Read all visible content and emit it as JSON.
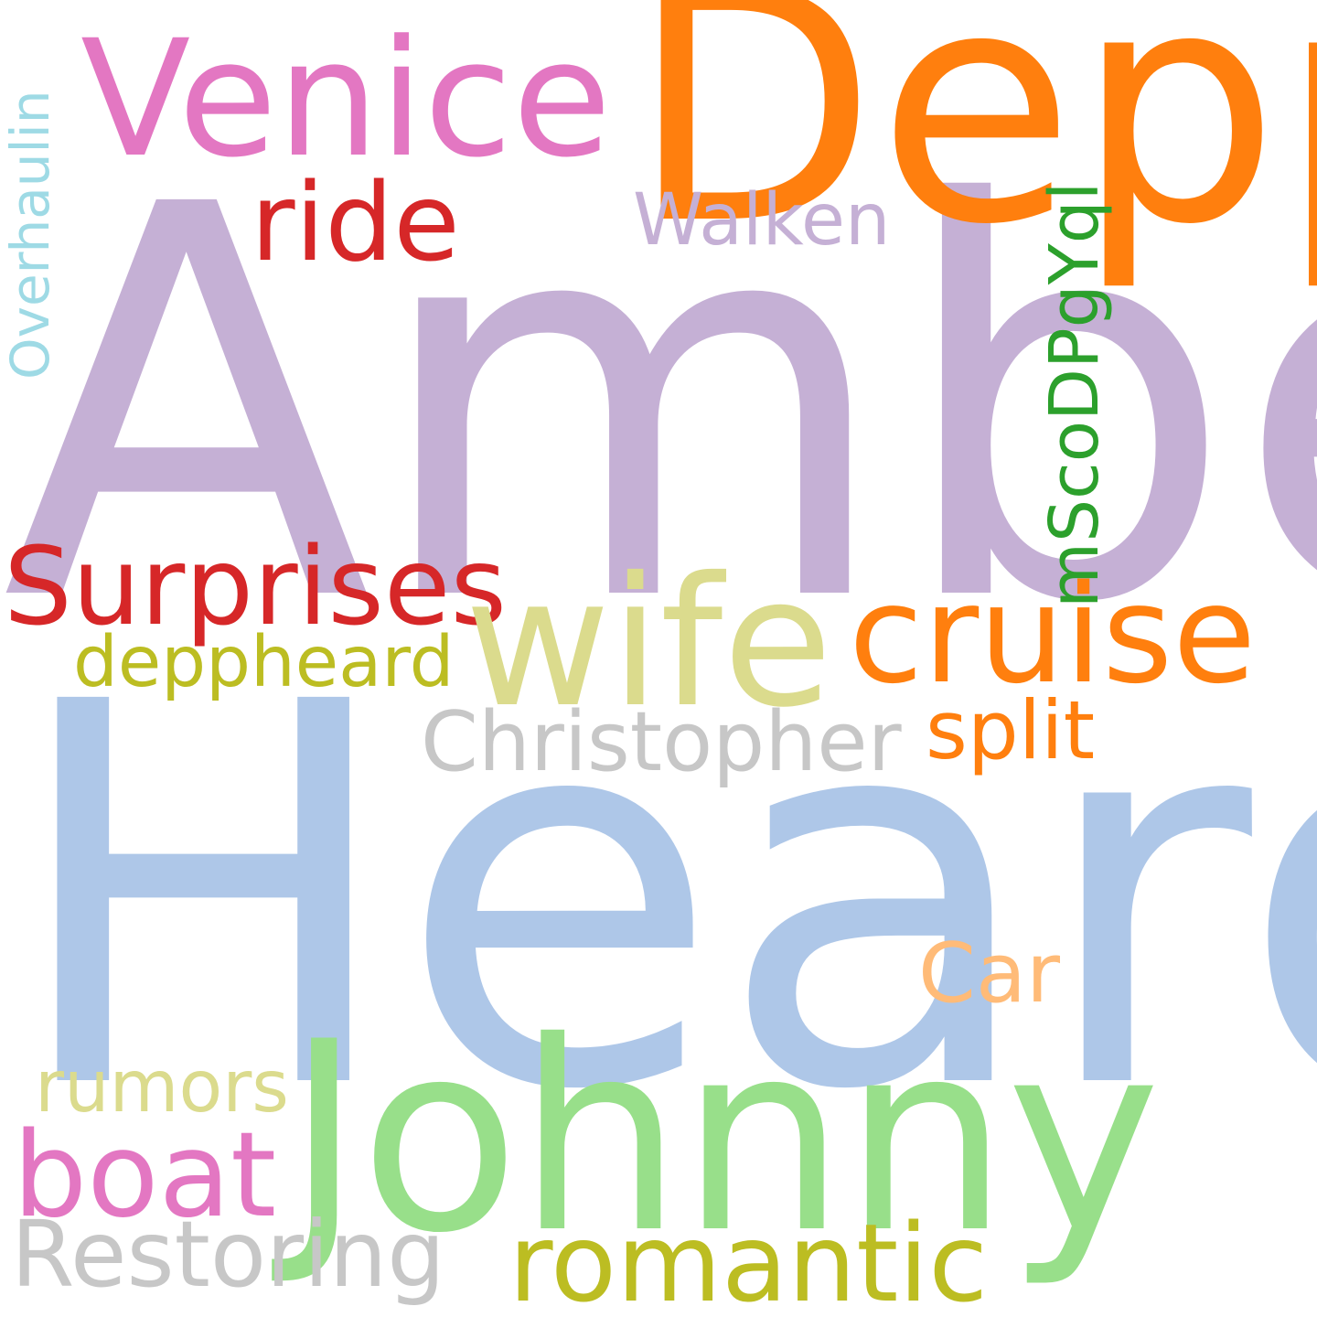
{
  "words": {
    "amber": {
      "text": "Amber",
      "color": "#c5b0d5"
    },
    "heard": {
      "text": "Heard",
      "color": "#aec7e8"
    },
    "depp": {
      "text": "Depp",
      "color": "#ff7f0e"
    },
    "johnny": {
      "text": "Johnny",
      "color": "#98df8a"
    },
    "venice": {
      "text": "Venice",
      "color": "#e377c2"
    },
    "wife": {
      "text": "wife",
      "color": "#dbdb8d"
    },
    "cruise": {
      "text": "cruise",
      "color": "#ff7f0e"
    },
    "surprises": {
      "text": "Surprises",
      "color": "#d62728"
    },
    "ride": {
      "text": "ride",
      "color": "#d62728"
    },
    "boat": {
      "text": "boat",
      "color": "#e377c2"
    },
    "romantic": {
      "text": "romantic",
      "color": "#bcbd22"
    },
    "restoring": {
      "text": "Restoring",
      "color": "#c7c7c7"
    },
    "christopher": {
      "text": "Christopher",
      "color": "#c7c7c7"
    },
    "split": {
      "text": "split",
      "color": "#ff7f0e"
    },
    "deppheard": {
      "text": "deppheard",
      "color": "#bcbd22"
    },
    "walken": {
      "text": "Walken",
      "color": "#c5b0d5"
    },
    "car": {
      "text": "Car",
      "color": "#ffbb78"
    },
    "rumors": {
      "text": "rumors",
      "color": "#dbdb8d"
    },
    "overhaulin": {
      "text": "Overhaulin",
      "color": "#9edae5"
    },
    "code": {
      "text": "mScoDPgYql",
      "color": "#2ca02c"
    }
  }
}
